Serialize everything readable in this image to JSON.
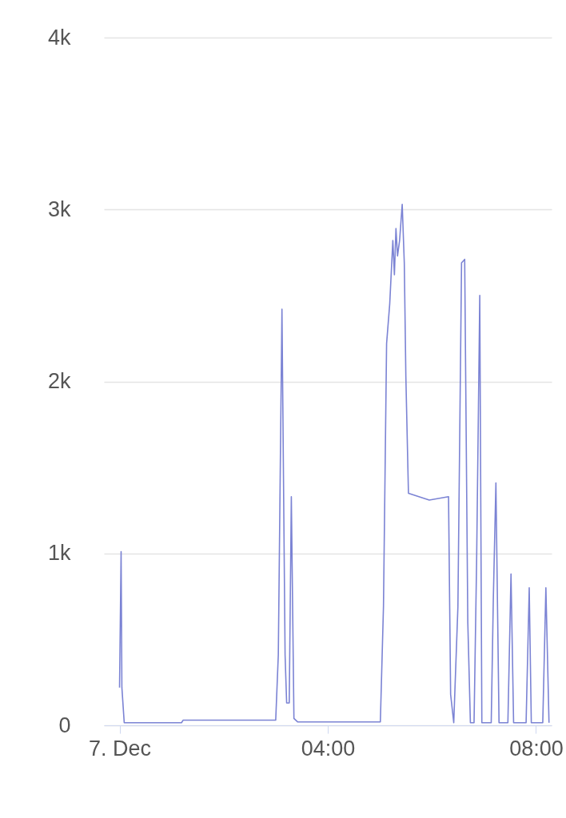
{
  "chart_data": {
    "type": "line",
    "x": [
      0,
      0.03,
      0.045,
      0.09,
      1.19,
      1.22,
      3.0,
      3.05,
      3.12,
      3.18,
      3.21,
      3.26,
      3.3,
      3.35,
      3.42,
      5.01,
      5.07,
      5.13,
      5.19,
      5.25,
      5.28,
      5.31,
      5.34,
      5.38,
      5.43,
      5.47,
      5.5,
      5.55,
      5.95,
      6.32,
      6.36,
      6.42,
      6.5,
      6.57,
      6.63,
      6.69,
      6.74,
      6.81,
      6.86,
      6.92,
      6.96,
      7.14,
      7.18,
      7.23,
      7.29,
      7.46,
      7.52,
      7.57,
      7.81,
      7.87,
      7.91,
      8.13,
      8.19,
      8.25
    ],
    "series": [
      {
        "color": "#7b83d4",
        "values": [
          220,
          1010,
          220,
          15,
          15,
          30,
          30,
          410,
          2420,
          410,
          130,
          130,
          1330,
          40,
          20,
          20,
          690,
          2220,
          2450,
          2820,
          2620,
          2890,
          2730,
          2820,
          3030,
          2690,
          2030,
          1350,
          1310,
          1330,
          180,
          15,
          690,
          2690,
          2710,
          600,
          15,
          15,
          970,
          2500,
          15,
          15,
          730,
          1410,
          15,
          15,
          880,
          15,
          15,
          800,
          15,
          15,
          800,
          15
        ]
      }
    ],
    "xlim": [
      -0.3,
      8.3
    ],
    "xticks": [
      {
        "value": 0,
        "label": "7. Dec"
      },
      {
        "value": 4,
        "label": "04:00"
      },
      {
        "value": 8,
        "label": "08:00"
      }
    ],
    "ylim": [
      0,
      4000
    ],
    "yticks": [
      0,
      {
        "value": 1000,
        "label": "1k"
      },
      {
        "value": 2000,
        "label": "2k"
      },
      {
        "value": 3000,
        "label": "3k"
      },
      {
        "value": 4000,
        "label": "4k"
      }
    ],
    "grid": "y"
  }
}
